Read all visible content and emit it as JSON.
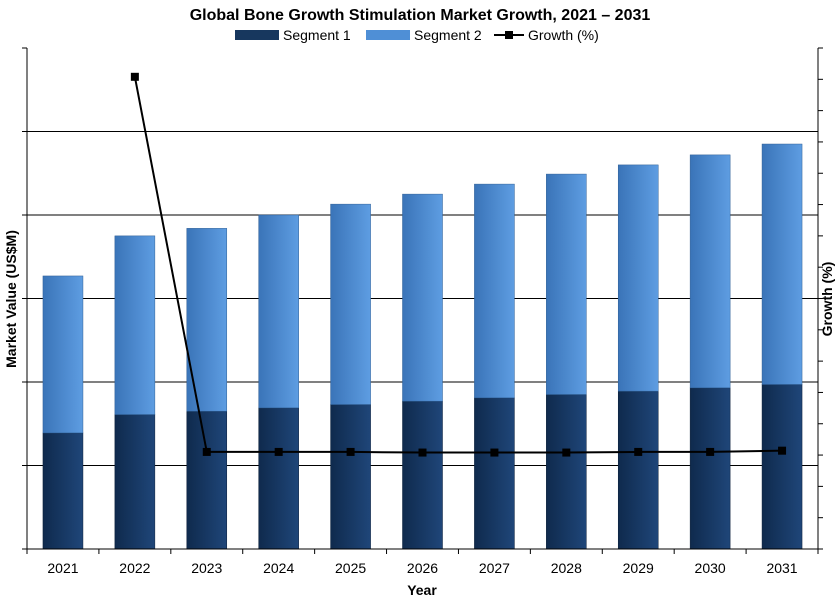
{
  "chart_data": {
    "type": "bar",
    "title": "Global Bone Growth Stimulation Market Growth, 2021 – 2031",
    "xlabel": "Year",
    "ylabel": "Market Value (US$M)",
    "y2label": "Growth (%)",
    "categories": [
      "2021",
      "2022",
      "2023",
      "2024",
      "2025",
      "2026",
      "2027",
      "2028",
      "2029",
      "2030",
      "2031"
    ],
    "stacked": true,
    "ylim": [
      0,
      6
    ],
    "y2lim": [
      0,
      8
    ],
    "grid": true,
    "legend_position": "top",
    "series": [
      {
        "name": "Segment 1",
        "kind": "bar",
        "color": "#17375e",
        "values": [
          1.39,
          1.61,
          1.65,
          1.69,
          1.73,
          1.77,
          1.81,
          1.85,
          1.89,
          1.93,
          1.97
        ]
      },
      {
        "name": "Segment 2",
        "kind": "bar",
        "color": "#4f8fd6",
        "values": [
          1.88,
          2.14,
          2.19,
          2.31,
          2.4,
          2.48,
          2.56,
          2.64,
          2.71,
          2.79,
          2.88
        ]
      },
      {
        "name": "Growth (%)",
        "kind": "line",
        "axis": "right",
        "color": "#000000",
        "values": [
          null,
          7.54,
          1.55,
          1.55,
          1.55,
          1.54,
          1.54,
          1.54,
          1.55,
          1.55,
          1.57
        ]
      }
    ]
  }
}
